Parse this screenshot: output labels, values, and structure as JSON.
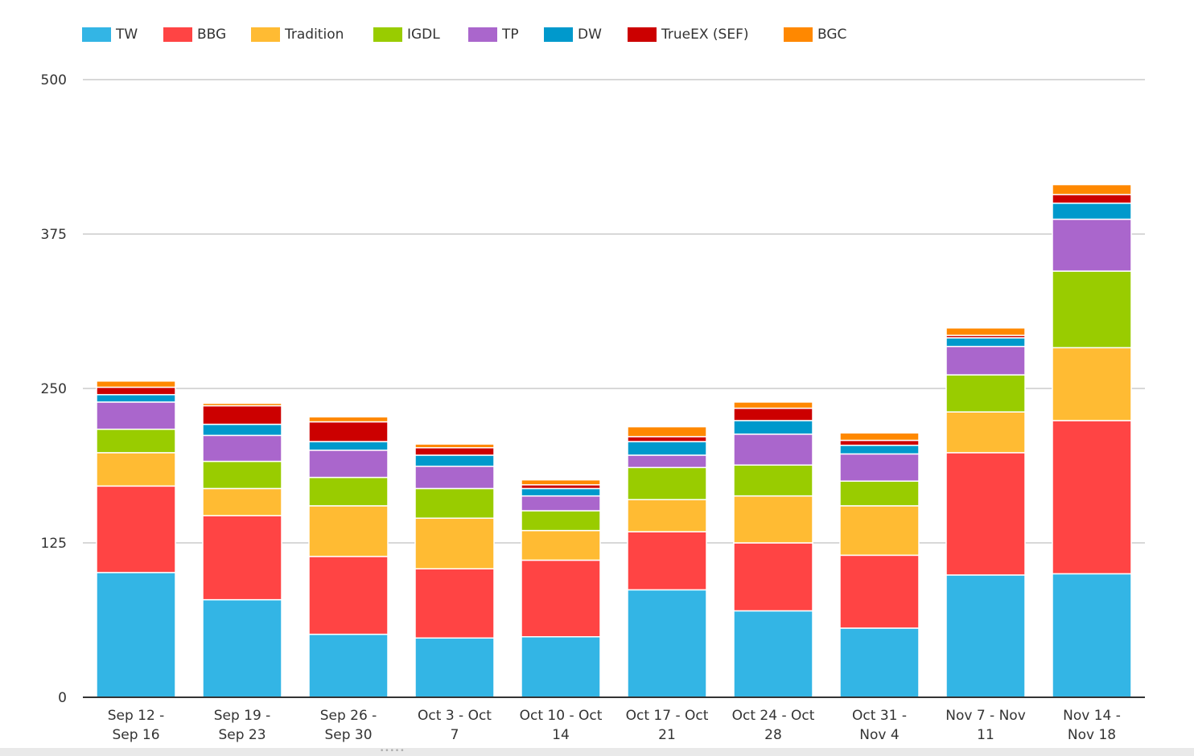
{
  "chart_data": {
    "type": "bar",
    "stacked": true,
    "categories": [
      [
        "Sep 12 -",
        "Sep 16"
      ],
      [
        "Sep 19 -",
        "Sep 23"
      ],
      [
        "Sep 26 -",
        "Sep 30"
      ],
      [
        "Oct 3 - Oct",
        "7"
      ],
      [
        "Oct 10 - Oct",
        "14"
      ],
      [
        "Oct 17 - Oct",
        "21"
      ],
      [
        "Oct 24 - Oct",
        "28"
      ],
      [
        "Oct 31 -",
        "Nov 4"
      ],
      [
        "Nov 7 - Nov",
        "11"
      ],
      [
        "Nov 14 -",
        "Nov 18"
      ]
    ],
    "series": [
      {
        "name": "TW",
        "color": "#33b5e5",
        "values": [
          101,
          79,
          51,
          48,
          49,
          87,
          70,
          56,
          99,
          100
        ]
      },
      {
        "name": "BBG",
        "color": "#ff4444",
        "values": [
          70,
          68,
          63,
          56,
          62,
          47,
          55,
          59,
          99,
          124
        ]
      },
      {
        "name": "Tradition",
        "color": "#ffbb33",
        "values": [
          27,
          22,
          41,
          41,
          24,
          26,
          38,
          40,
          33,
          59
        ]
      },
      {
        "name": "IGDL",
        "color": "#99cc00",
        "values": [
          19,
          22,
          23,
          24,
          16,
          26,
          25,
          20,
          30,
          62
        ]
      },
      {
        "name": "TP",
        "color": "#aa66cc",
        "values": [
          22,
          21,
          22,
          18,
          12,
          10,
          25,
          22,
          23,
          42
        ]
      },
      {
        "name": "DW",
        "color": "#0099cc",
        "values": [
          6,
          9,
          7,
          9,
          6,
          11,
          11,
          7,
          7,
          13
        ]
      },
      {
        "name": "TrueEX (SEF)",
        "color": "#cc0000",
        "values": [
          6,
          15,
          16,
          6,
          3,
          4,
          10,
          4,
          2,
          7
        ]
      },
      {
        "name": "BGC",
        "color": "#ff8800",
        "values": [
          5,
          2,
          4,
          3,
          4,
          8,
          5,
          6,
          6,
          8
        ]
      }
    ],
    "ylim": [
      0,
      500
    ],
    "yticks": [
      0,
      125,
      250,
      375,
      500
    ],
    "title": "",
    "xlabel": "",
    "ylabel": "",
    "legend": "top-left",
    "grid": true
  }
}
